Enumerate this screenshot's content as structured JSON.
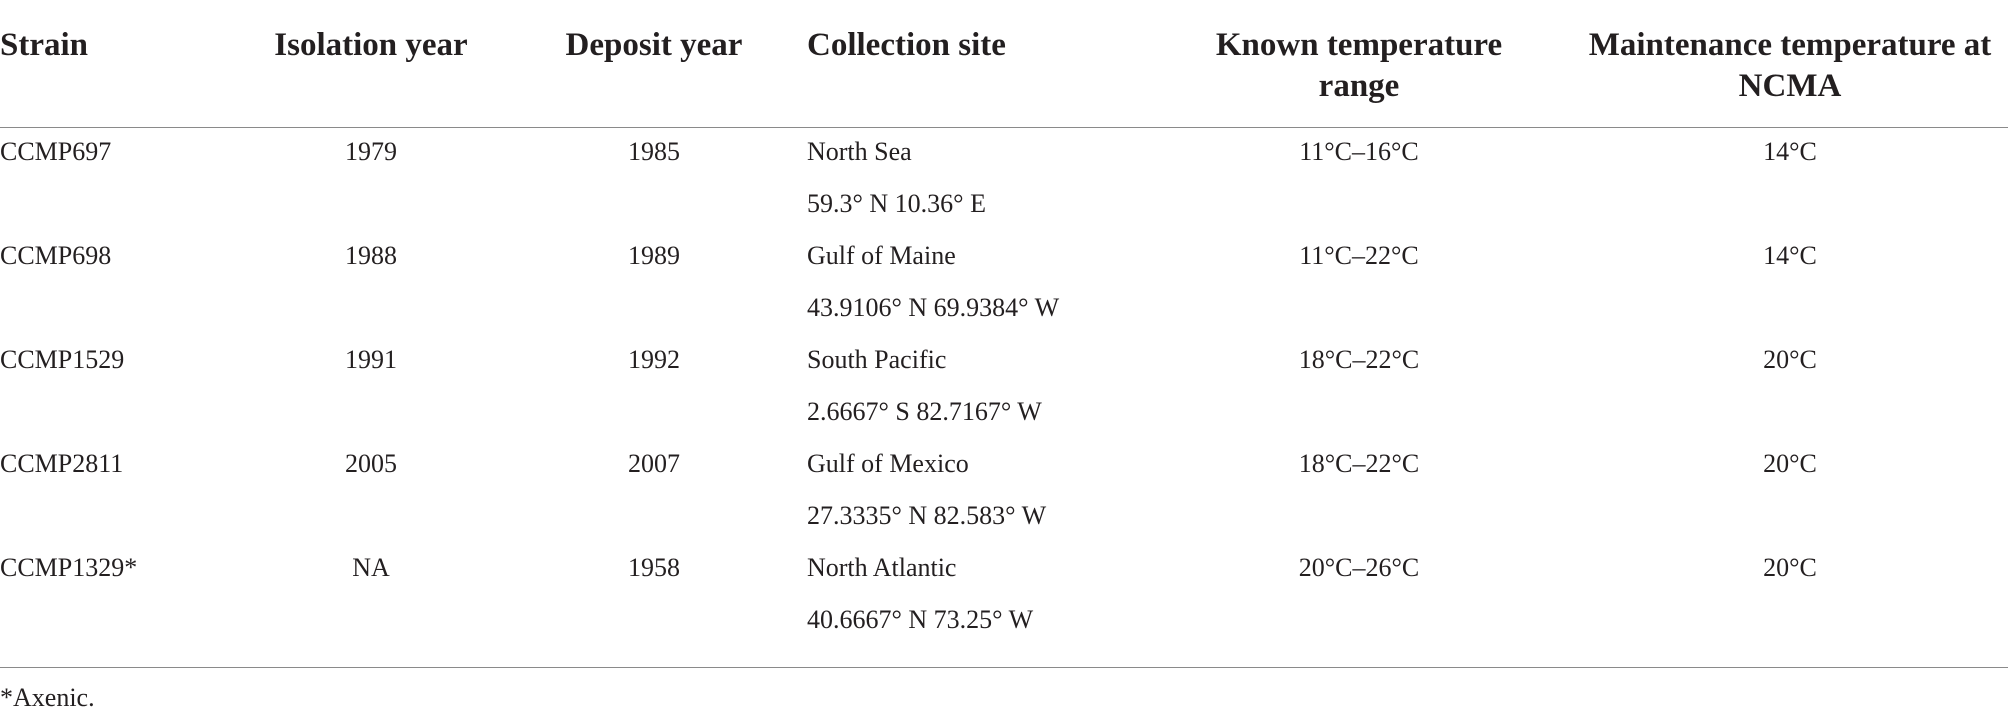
{
  "table": {
    "header": [
      "Strain",
      "Isolation year",
      "Deposit year",
      "Collection site",
      "Known temperature range",
      "Maintenance temperature at NCMA"
    ],
    "rows": [
      [
        "CCMP697",
        "1979",
        "1985",
        [
          "North Sea",
          "59.3° N 10.36° E"
        ],
        "11°C–16°C",
        "14°C"
      ],
      [
        "CCMP698",
        "1988",
        "1989",
        [
          "Gulf of Maine",
          "43.9106° N 69.9384° W"
        ],
        "11°C–22°C",
        "14°C"
      ],
      [
        "CCMP1529",
        "1991",
        "1992",
        [
          "South Pacific",
          "2.6667° S 82.7167° W"
        ],
        "18°C–22°C",
        "20°C"
      ],
      [
        "CCMP2811",
        "2005",
        "2007",
        [
          "Gulf of Mexico",
          "27.3335° N 82.583° W"
        ],
        "18°C–22°C",
        "20°C"
      ],
      [
        "CCMP1329*",
        "NA",
        "1958",
        [
          "North Atlantic",
          "40.6667° N 73.25° W"
        ],
        "20°C–26°C",
        "20°C"
      ]
    ],
    "footnote": "*Axenic."
  }
}
